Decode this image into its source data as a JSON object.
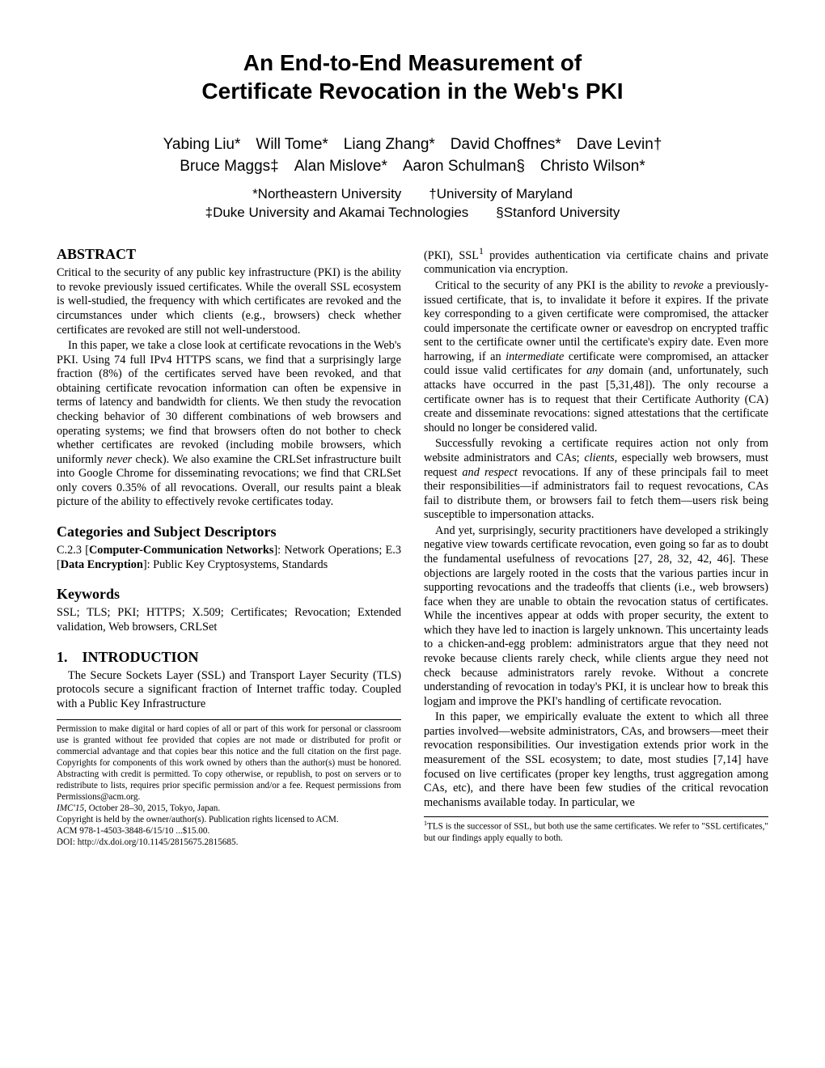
{
  "title_line1": "An End-to-End Measurement of",
  "title_line2": "Certificate Revocation in the Web's PKI",
  "authors_line1": "Yabing Liu* Will Tome* Liang Zhang* David Choffnes* Dave Levin†",
  "authors_line2": "Bruce Maggs‡ Alan Mislove* Aaron Schulman§ Christo Wilson*",
  "affils_line1": "*Northeastern University  †University of Maryland",
  "affils_line2": "‡Duke University and Akamai Technologies  §Stanford University",
  "abstract_h": "ABSTRACT",
  "abstract_p1": "Critical to the security of any public key infrastructure (PKI) is the ability to revoke previously issued certificates. While the overall SSL ecosystem is well-studied, the frequency with which certificates are revoked and the circumstances under which clients (e.g., browsers) check whether certificates are revoked are still not well-understood.",
  "abstract_p2_a": "In this paper, we take a close look at certificate revocations in the Web's PKI. Using 74 full IPv4 HTTPS scans, we find that a surprisingly large fraction (8%) of the certificates served have been revoked, and that obtaining certificate revocation information can often be expensive in terms of latency and bandwidth for clients. We then study the revocation checking behavior of 30 different combinations of web browsers and operating systems; we find that browsers often do not bother to check whether certificates are revoked (including mobile browsers, which uniformly ",
  "abstract_p2_never": "never",
  "abstract_p2_b": " check). We also examine the CRLSet infrastructure built into Google Chrome for disseminating revocations; we find that CRLSet only covers 0.35% of all revocations. Overall, our results paint a bleak picture of the ability to effectively revoke certificates today.",
  "categories_h": "Categories and Subject Descriptors",
  "categories_p_a": "C.2.3 [",
  "categories_p_b": "Computer-Communication Networks",
  "categories_p_c": "]: Network Operations; E.3 [",
  "categories_p_d": "Data Encryption",
  "categories_p_e": "]: Public Key Cryptosystems, Standards",
  "keywords_h": "Keywords",
  "keywords_p": "SSL; TLS; PKI; HTTPS; X.509; Certificates; Revocation; Extended validation, Web browsers, CRLSet",
  "intro_h": "1. INTRODUCTION",
  "intro_p1": "The Secure Sockets Layer (SSL) and Transport Layer Security (TLS) protocols secure a significant fraction of Internet traffic today. Coupled with a Public Key Infrastructure",
  "cpy_p1": "Permission to make digital or hard copies of all or part of this work for personal or classroom use is granted without fee provided that copies are not made or distributed for profit or commercial advantage and that copies bear this notice and the full citation on the first page. Copyrights for components of this work owned by others than the author(s) must be honored. Abstracting with credit is permitted. To copy otherwise, or republish, to post on servers or to redistribute to lists, requires prior specific permission and/or a fee. Request permissions from Permissions@acm.org.",
  "cpy_conf": "IMC'15,",
  "cpy_conf2": " October 28–30, 2015, Tokyo, Japan.",
  "cpy_line3": "Copyright is held by the owner/author(s). Publication rights licensed to ACM.",
  "cpy_line4": "ACM 978-1-4503-3848-6/15/10 ...$15.00.",
  "cpy_line5": "DOI: http://dx.doi.org/10.1145/2815675.2815685.",
  "col2_p1_a": "(PKI), SSL",
  "col2_p1_sup": "1",
  "col2_p1_b": " provides authentication via certificate chains and private communication via encryption.",
  "col2_p2_a": "Critical to the security of any PKI is the ability to ",
  "col2_p2_revoke": "revoke",
  "col2_p2_b": " a previously-issued certificate, that is, to invalidate it before it expires. If the private key corresponding to a given certificate were compromised, the attacker could impersonate the certificate owner or eavesdrop on encrypted traffic sent to the certificate owner until the certificate's expiry date. Even more harrowing, if an ",
  "col2_p2_inter": "intermediate",
  "col2_p2_c": " certificate were compromised, an attacker could issue valid certificates for ",
  "col2_p2_any": "any",
  "col2_p2_d": " domain (and, unfortunately, such attacks have occurred in the past [5,31,48]). The only recourse a certificate owner has is to request that their Certificate Authority (CA) create and disseminate revocations: signed attestations that the certificate should no longer be considered valid.",
  "col2_p3_a": "Successfully revoking a certificate requires action not only from website administrators and CAs; ",
  "col2_p3_clients": "clients",
  "col2_p3_b": ", especially web browsers, must request ",
  "col2_p3_and": "and respect",
  "col2_p3_c": " revocations. If any of these principals fail to meet their responsibilities—if administrators fail to request revocations, CAs fail to distribute them, or browsers fail to fetch them—users risk being susceptible to impersonation attacks.",
  "col2_p4": "And yet, surprisingly, security practitioners have developed a strikingly negative view towards certificate revocation, even going so far as to doubt the fundamental usefulness of revocations [27, 28, 32, 42, 46]. These objections are largely rooted in the costs that the various parties incur in supporting revocations and the tradeoffs that clients (i.e., web browsers) face when they are unable to obtain the revocation status of certificates. While the incentives appear at odds with proper security, the extent to which they have led to inaction is largely unknown. This uncertainty leads to a chicken-and-egg problem: administrators argue that they need not revoke because clients rarely check, while clients argue they need not check because administrators rarely revoke. Without a concrete understanding of revocation in today's PKI, it is unclear how to break this logjam and improve the PKI's handling of certificate revocation.",
  "col2_p5": "In this paper, we empirically evaluate the extent to which all three parties involved—website administrators, CAs, and browsers—meet their revocation responsibilities. Our investigation extends prior work in the measurement of the SSL ecosystem; to date, most studies [7,14] have focused on live certificates (proper key lengths, trust aggregation among CAs, etc), and there have been few studies of the critical revocation mechanisms available today. In particular, we",
  "fn_sup": "1",
  "fn_text": "TLS is the successor of SSL, but both use the same certificates. We refer to \"SSL certificates,\" but our findings apply equally to both."
}
